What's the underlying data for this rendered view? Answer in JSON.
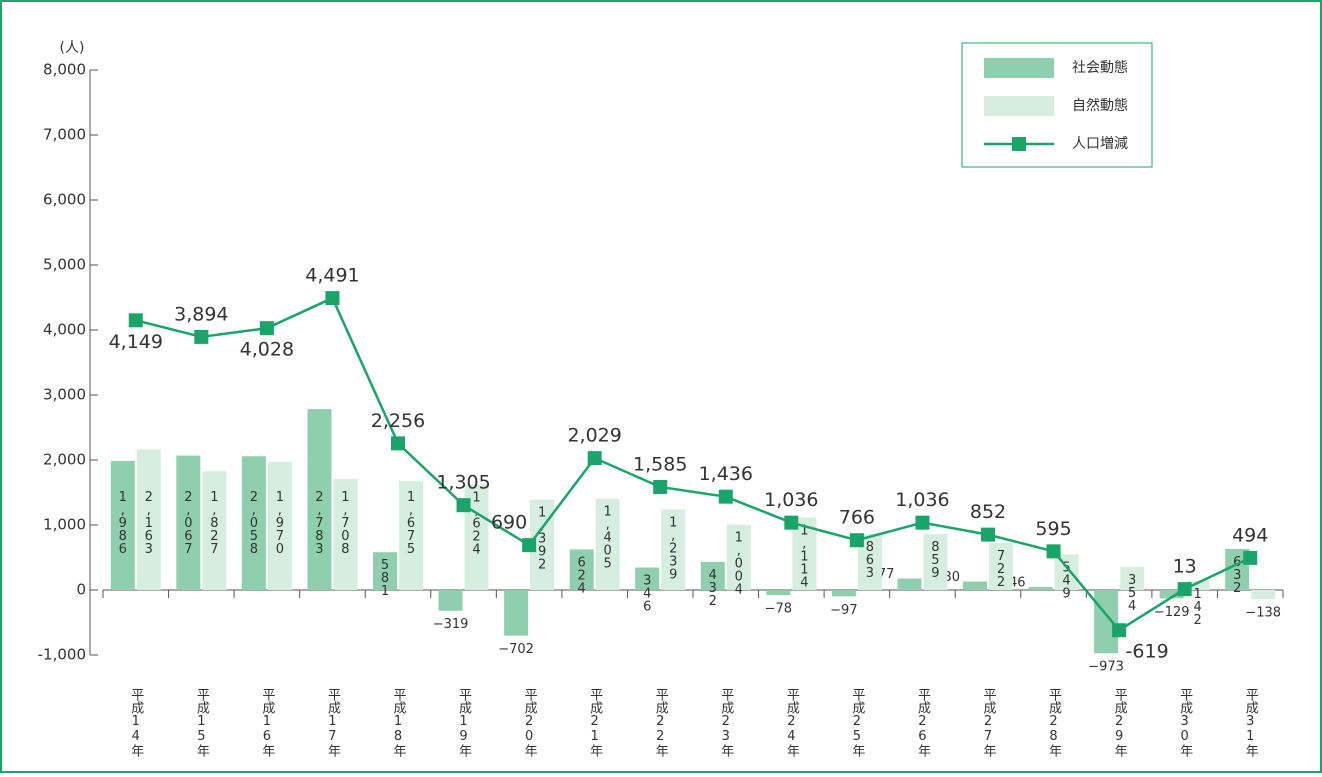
{
  "chart_data": {
    "type": "bar-line",
    "y_label": "(人)",
    "categories": [
      "平成14年",
      "平成15年",
      "平成16年",
      "平成17年",
      "平成18年",
      "平成19年",
      "平成20年",
      "平成21年",
      "平成22年",
      "平成23年",
      "平成24年",
      "平成25年",
      "平成26年",
      "平成27年",
      "平成28年",
      "平成29年",
      "平成30年",
      "平成31年"
    ],
    "series": [
      {
        "name": "社会動態",
        "type": "bar",
        "color": "#8fcfae",
        "values": [
          1986,
          2067,
          2058,
          2783,
          581,
          -319,
          -702,
          624,
          346,
          432,
          -78,
          -97,
          177,
          130,
          46,
          -973,
          -129,
          632
        ],
        "value_labels": [
          "1,986",
          "2,067",
          "2,058",
          "2,783",
          "581",
          "−319",
          "−702",
          "624",
          "346",
          "432",
          "−78",
          "−97",
          "177",
          "130",
          "46",
          "−973",
          "−129",
          "632"
        ]
      },
      {
        "name": "自然動態",
        "type": "bar",
        "color": "#d5eee0",
        "values": [
          2163,
          1827,
          1970,
          1708,
          1675,
          1624,
          1392,
          1405,
          1239,
          1004,
          1114,
          863,
          859,
          722,
          549,
          354,
          142,
          -138
        ],
        "value_labels": [
          "2,163",
          "1,827",
          "1,970",
          "1,708",
          "1,675",
          "1,624",
          "1,392",
          "1,405",
          "1,239",
          "1,004",
          "1,114",
          "863",
          "859",
          "722",
          "549",
          "354",
          "142",
          "−138"
        ]
      },
      {
        "name": "人口増減",
        "type": "line",
        "color": "#1aa46a",
        "values": [
          4149,
          3894,
          4028,
          4491,
          2256,
          1305,
          690,
          2029,
          1585,
          1436,
          1036,
          766,
          1036,
          852,
          595,
          -619,
          13,
          494
        ],
        "value_labels": [
          "4,149",
          "3,894",
          "4,028",
          "4,491",
          "2,256",
          "1,305",
          "690",
          "2,029",
          "1,585",
          "1,436",
          "1,036",
          "766",
          "1,036",
          "852",
          "595",
          "-619",
          "13",
          "494"
        ]
      }
    ],
    "ylim": [
      -1000,
      8000
    ],
    "yticks": [
      {
        "value": -1000,
        "label": "-1,000"
      },
      0,
      {
        "value": 1000,
        "label": "1,000"
      },
      {
        "value": 2000,
        "label": "2,000"
      },
      {
        "value": 3000,
        "label": "3,000"
      },
      {
        "value": 4000,
        "label": "4,000"
      },
      {
        "value": 5000,
        "label": "5,000"
      },
      {
        "value": 6000,
        "label": "6,000"
      },
      {
        "value": 7000,
        "label": "7,000"
      },
      {
        "value": 8000,
        "label": "8,000"
      }
    ],
    "legend": "top-right"
  }
}
